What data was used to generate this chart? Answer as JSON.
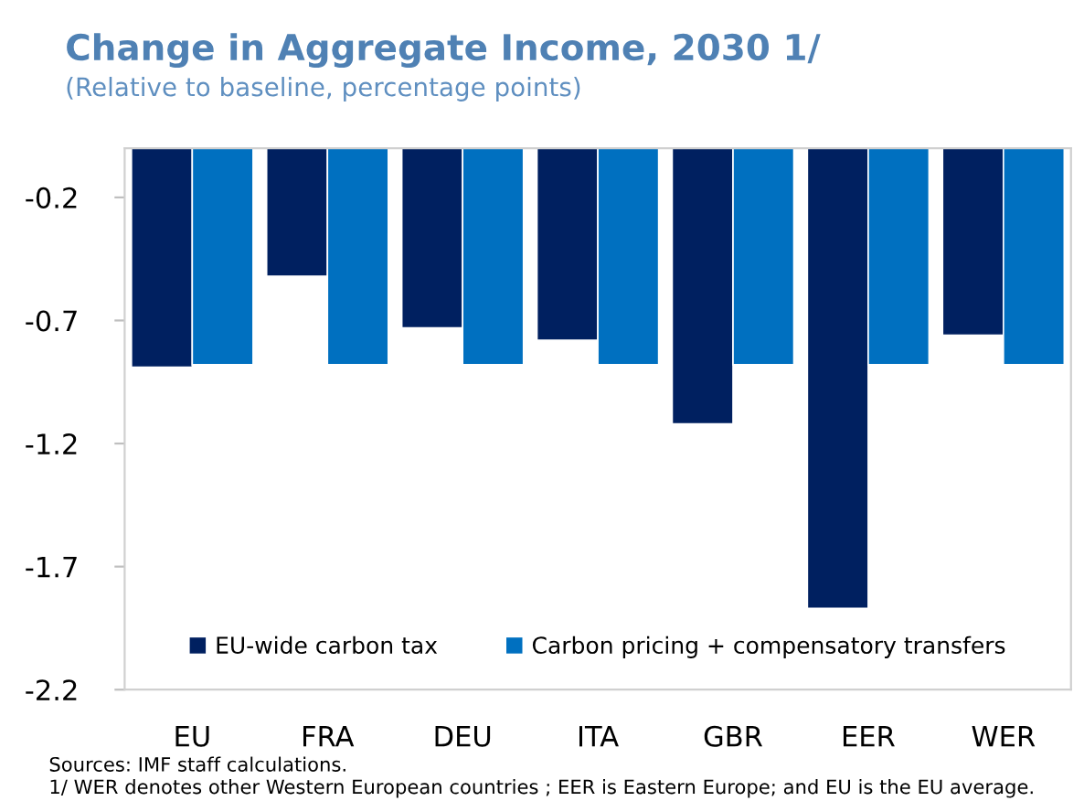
{
  "chart_data": {
    "type": "bar",
    "title": "Change in Aggregate Income, 2030 1/",
    "subtitle": "(Relative to baseline, percentage points)",
    "categories": [
      "EU",
      "FRA",
      "DEU",
      "ITA",
      "GBR",
      "EER",
      "WER"
    ],
    "series": [
      {
        "name": "EU-wide carbon tax",
        "color": "#002060",
        "values": [
          -0.89,
          -0.52,
          -0.73,
          -0.78,
          -1.12,
          -1.87,
          -0.76
        ]
      },
      {
        "name": "Carbon pricing + compensatory transfers",
        "color": "#0070c0",
        "values": [
          -0.88,
          -0.88,
          -0.88,
          -0.88,
          -0.88,
          -0.88,
          -0.88
        ]
      }
    ],
    "ylim": [
      -2.2,
      0
    ],
    "yticks": [
      -0.2,
      -0.7,
      -1.2,
      -1.7,
      -2.2
    ],
    "grid": false,
    "legend": "bottom",
    "annotations": [
      "Sources: IMF staff calculations.",
      "1/ WER denotes other Western European countries ; EER is Eastern Europe; and EU is the EU average."
    ]
  }
}
